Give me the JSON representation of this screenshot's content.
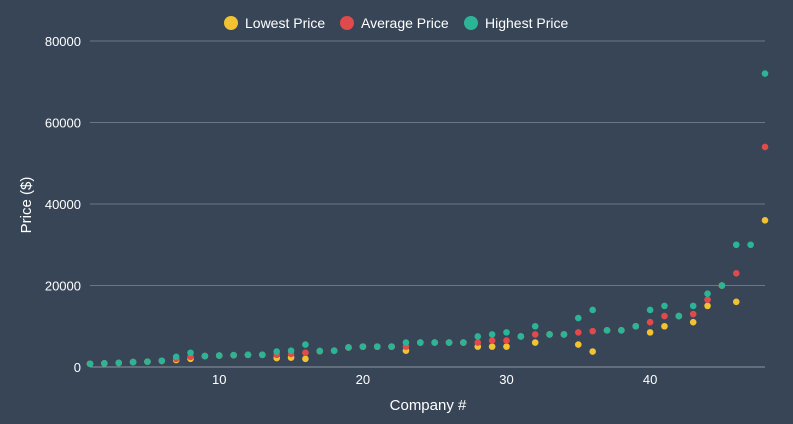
{
  "chart_data": {
    "type": "scatter",
    "xlabel": "Company #",
    "ylabel": "Price ($)",
    "xlim": [
      1,
      48
    ],
    "ylim": [
      0,
      80000
    ],
    "x_ticks": [
      10,
      20,
      30,
      40
    ],
    "y_ticks": [
      0,
      20000,
      40000,
      60000,
      80000
    ],
    "grid": true,
    "legend_position": "top-center",
    "series": [
      {
        "name": "Lowest Price",
        "color": "#f1c232",
        "points": [
          [
            1,
            800
          ],
          [
            2,
            900
          ],
          [
            3,
            1000
          ],
          [
            4,
            1200
          ],
          [
            5,
            1300
          ],
          [
            6,
            1500
          ],
          [
            7,
            1700
          ],
          [
            8,
            2000
          ],
          [
            9,
            2700
          ],
          [
            10,
            2800
          ],
          [
            11,
            2900
          ],
          [
            12,
            3000
          ],
          [
            13,
            3000
          ],
          [
            14,
            2200
          ],
          [
            15,
            2300
          ],
          [
            16,
            2000
          ],
          [
            17,
            3900
          ],
          [
            18,
            4000
          ],
          [
            19,
            4800
          ],
          [
            20,
            5000
          ],
          [
            21,
            5000
          ],
          [
            22,
            5000
          ],
          [
            23,
            4000
          ],
          [
            24,
            6000
          ],
          [
            25,
            6000
          ],
          [
            26,
            6000
          ],
          [
            27,
            6000
          ],
          [
            28,
            5000
          ],
          [
            29,
            5000
          ],
          [
            30,
            5000
          ],
          [
            31,
            7500
          ],
          [
            32,
            6000
          ],
          [
            33,
            8000
          ],
          [
            34,
            8000
          ],
          [
            35,
            5500
          ],
          [
            36,
            3800
          ],
          [
            37,
            9000
          ],
          [
            38,
            9000
          ],
          [
            39,
            10000
          ],
          [
            40,
            8500
          ],
          [
            41,
            10000
          ],
          [
            42,
            12500
          ],
          [
            43,
            11000
          ],
          [
            44,
            15000
          ],
          [
            45,
            20000
          ],
          [
            46,
            16000
          ],
          [
            48,
            36000
          ]
        ]
      },
      {
        "name": "Average Price",
        "color": "#e04a4a",
        "points": [
          [
            1,
            800
          ],
          [
            2,
            900
          ],
          [
            3,
            1000
          ],
          [
            4,
            1200
          ],
          [
            5,
            1300
          ],
          [
            6,
            1500
          ],
          [
            7,
            2000
          ],
          [
            8,
            2500
          ],
          [
            9,
            2700
          ],
          [
            10,
            2800
          ],
          [
            11,
            2900
          ],
          [
            12,
            3000
          ],
          [
            13,
            3000
          ],
          [
            14,
            3000
          ],
          [
            15,
            3200
          ],
          [
            16,
            3500
          ],
          [
            17,
            3900
          ],
          [
            18,
            4000
          ],
          [
            19,
            4800
          ],
          [
            20,
            5000
          ],
          [
            21,
            5000
          ],
          [
            22,
            5000
          ],
          [
            23,
            5000
          ],
          [
            24,
            6000
          ],
          [
            25,
            6000
          ],
          [
            26,
            6000
          ],
          [
            27,
            6000
          ],
          [
            28,
            6000
          ],
          [
            29,
            6500
          ],
          [
            30,
            6500
          ],
          [
            31,
            7500
          ],
          [
            32,
            8000
          ],
          [
            33,
            8000
          ],
          [
            34,
            8000
          ],
          [
            35,
            8500
          ],
          [
            36,
            8800
          ],
          [
            37,
            9000
          ],
          [
            38,
            9000
          ],
          [
            39,
            10000
          ],
          [
            40,
            11000
          ],
          [
            41,
            12500
          ],
          [
            42,
            12500
          ],
          [
            43,
            13000
          ],
          [
            44,
            16500
          ],
          [
            45,
            20000
          ],
          [
            46,
            23000
          ],
          [
            48,
            54000
          ]
        ]
      },
      {
        "name": "Highest Price",
        "color": "#2bb596",
        "points": [
          [
            1,
            800
          ],
          [
            2,
            900
          ],
          [
            3,
            1000
          ],
          [
            4,
            1200
          ],
          [
            5,
            1300
          ],
          [
            6,
            1500
          ],
          [
            7,
            2500
          ],
          [
            8,
            3500
          ],
          [
            9,
            2700
          ],
          [
            10,
            2800
          ],
          [
            11,
            2900
          ],
          [
            12,
            3000
          ],
          [
            13,
            3000
          ],
          [
            14,
            3800
          ],
          [
            15,
            4000
          ],
          [
            16,
            5500
          ],
          [
            17,
            3900
          ],
          [
            18,
            4000
          ],
          [
            19,
            4800
          ],
          [
            20,
            5000
          ],
          [
            21,
            5000
          ],
          [
            22,
            5000
          ],
          [
            23,
            6000
          ],
          [
            24,
            6000
          ],
          [
            25,
            6000
          ],
          [
            26,
            6000
          ],
          [
            27,
            6000
          ],
          [
            28,
            7500
          ],
          [
            29,
            8000
          ],
          [
            30,
            8500
          ],
          [
            31,
            7500
          ],
          [
            32,
            10000
          ],
          [
            33,
            8000
          ],
          [
            34,
            8000
          ],
          [
            35,
            12000
          ],
          [
            36,
            14000
          ],
          [
            37,
            9000
          ],
          [
            38,
            9000
          ],
          [
            39,
            10000
          ],
          [
            40,
            14000
          ],
          [
            41,
            15000
          ],
          [
            42,
            12500
          ],
          [
            43,
            15000
          ],
          [
            44,
            18000
          ],
          [
            45,
            20000
          ],
          [
            46,
            30000
          ],
          [
            47,
            30000
          ],
          [
            48,
            72000
          ]
        ]
      }
    ]
  }
}
